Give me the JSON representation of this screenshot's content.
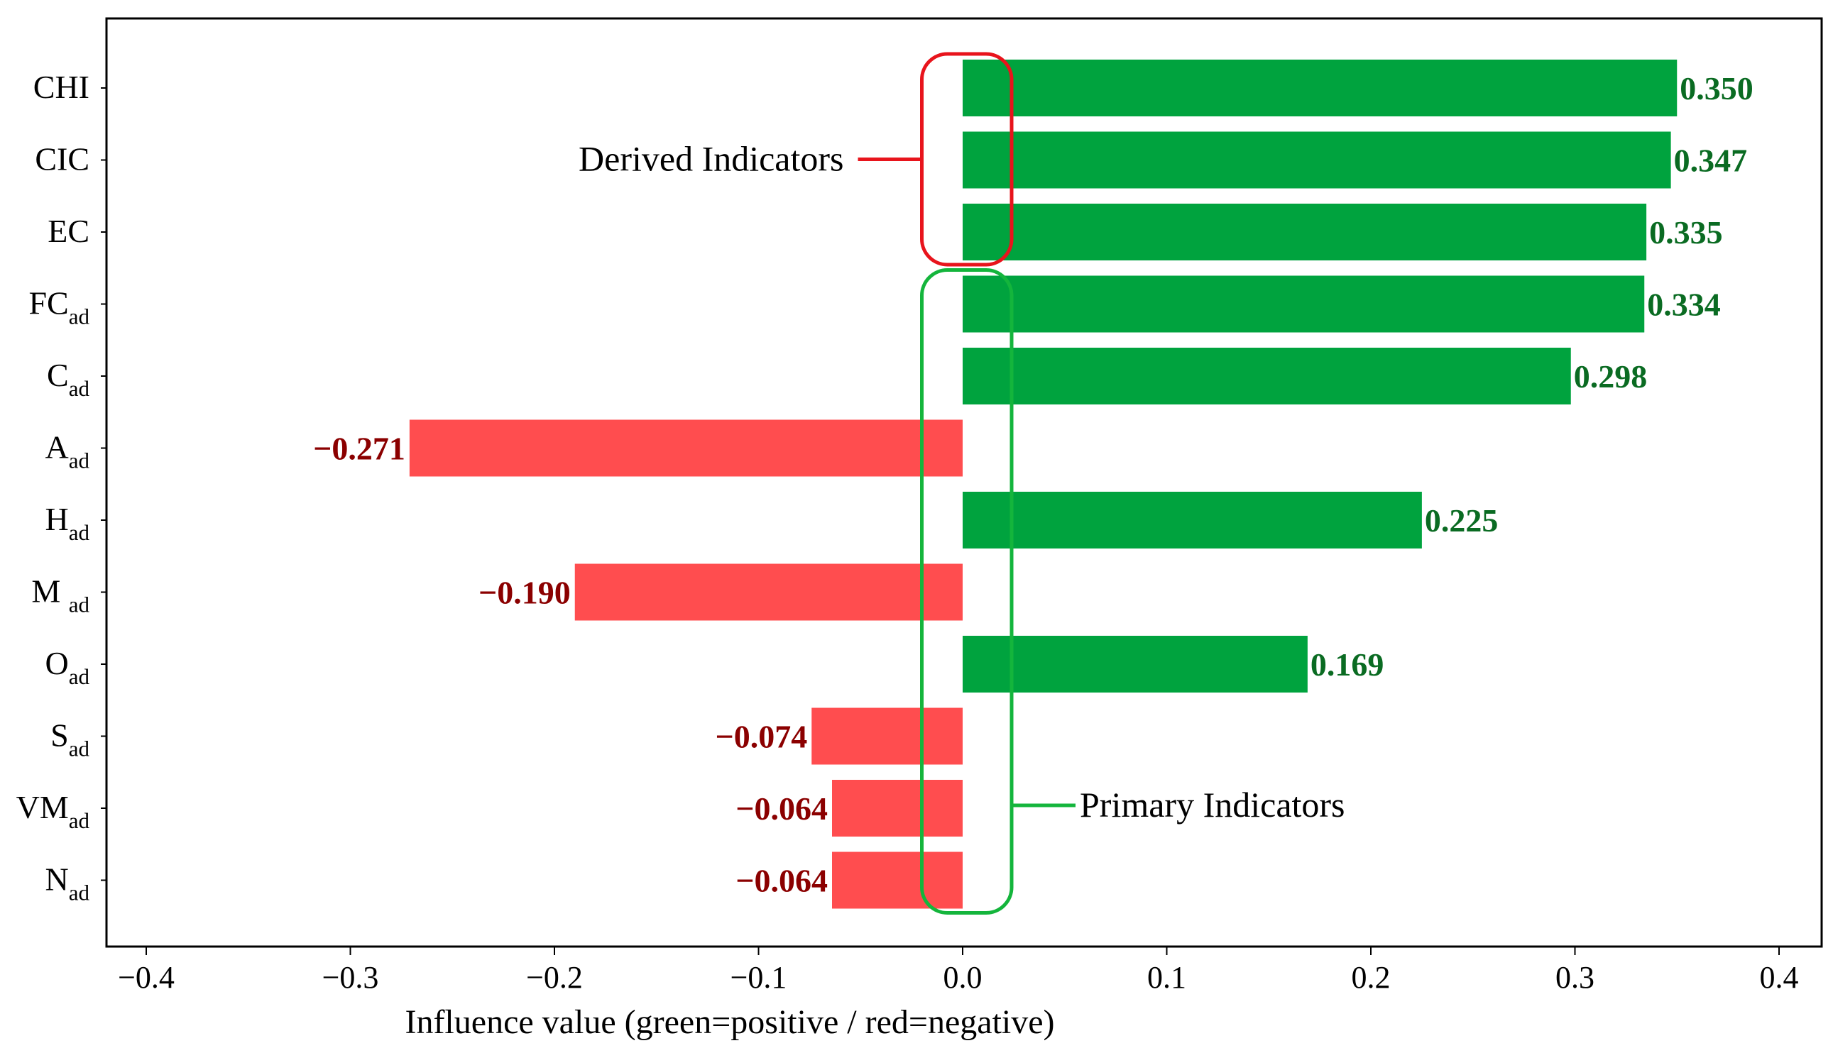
{
  "chart_data": {
    "type": "bar",
    "orientation": "horizontal",
    "categories": [
      {
        "main": "CHI",
        "sub": ""
      },
      {
        "main": "CIC",
        "sub": ""
      },
      {
        "main": "EC",
        "sub": ""
      },
      {
        "main": "FC",
        "sub": "ad"
      },
      {
        "main": "C",
        "sub": "ad"
      },
      {
        "main": "A",
        "sub": "ad"
      },
      {
        "main": "H",
        "sub": "ad"
      },
      {
        "main": "M ",
        "sub": "ad"
      },
      {
        "main": "O",
        "sub": "ad"
      },
      {
        "main": "S",
        "sub": "ad"
      },
      {
        "main": "VM",
        "sub": "ad"
      },
      {
        "main": "N",
        "sub": "ad"
      }
    ],
    "values": [
      0.35,
      0.347,
      0.335,
      0.334,
      0.298,
      -0.271,
      0.225,
      -0.19,
      0.169,
      -0.074,
      -0.064,
      -0.064
    ],
    "value_labels": [
      "0.350",
      "0.347",
      "0.335",
      "0.334",
      "0.298",
      "−0.271",
      "0.225",
      "−0.190",
      "0.169",
      "−0.074",
      "−0.064",
      "−0.064"
    ],
    "xlim": [
      -0.42,
      0.42
    ],
    "xticks": [
      -0.4,
      -0.3,
      -0.2,
      -0.1,
      0.0,
      0.1,
      0.2,
      0.3,
      0.4
    ],
    "xtick_labels": [
      "−0.4",
      "−0.3",
      "−0.2",
      "−0.1",
      "0.0",
      "0.1",
      "0.2",
      "0.3",
      "0.4"
    ],
    "xlabel": "Influence value (green=positive / red=negative)",
    "ylabel": "",
    "title": "",
    "grid": false,
    "colors": {
      "positive": "#00a33e",
      "negative": "#ff4d4f",
      "positive_label": "#0a6b22",
      "negative_label": "#8b0000"
    },
    "annotations": [
      {
        "text": "Derived Indicators",
        "color": "#e8141c",
        "category_range": [
          0,
          2
        ]
      },
      {
        "text": "Primary Indicators",
        "color": "#14b53c",
        "category_range": [
          3,
          11
        ]
      }
    ]
  }
}
